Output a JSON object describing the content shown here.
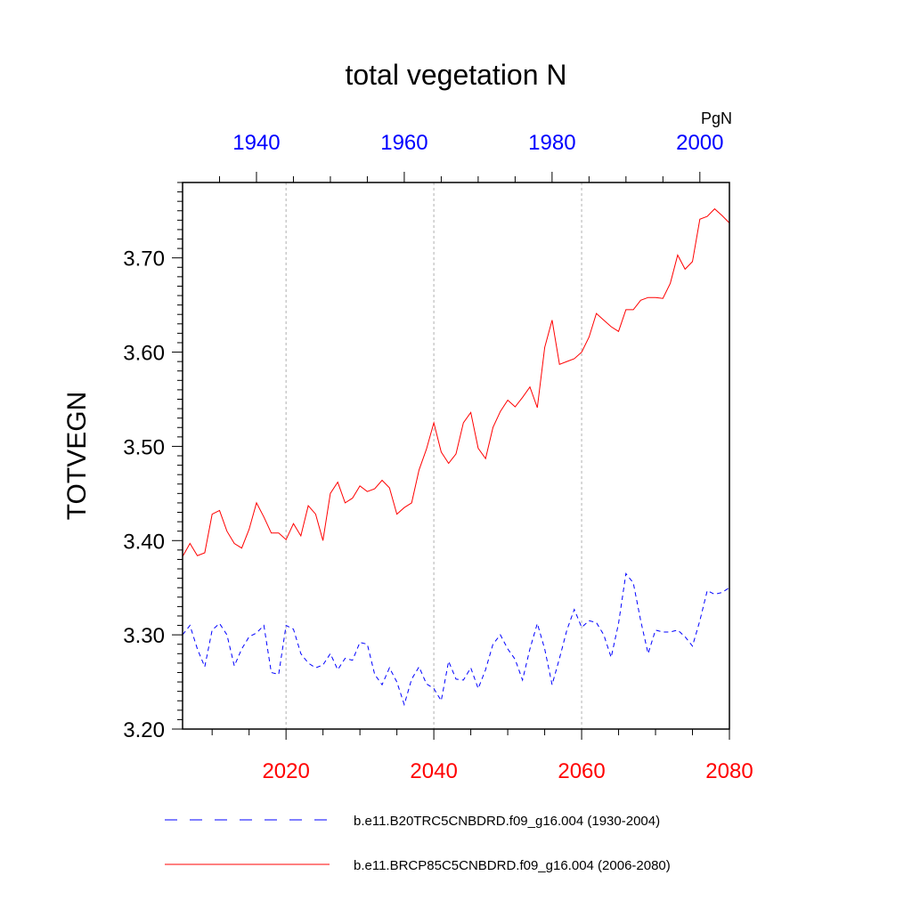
{
  "chart_data": {
    "type": "line",
    "title": "total vegetation N",
    "ylabel": "TOTVEGN",
    "units": "PgN",
    "ylim": [
      3.2,
      3.78
    ],
    "y_ticks": [
      "3.20",
      "3.30",
      "3.40",
      "3.50",
      "3.60",
      "3.70"
    ],
    "bottom_axis": {
      "xlim": [
        2006,
        2080
      ],
      "ticks": [
        "2020",
        "2040",
        "2060",
        "2080"
      ],
      "color": "#ff0000"
    },
    "top_axis": {
      "xlim": [
        1930,
        2004
      ],
      "ticks": [
        "1940",
        "1960",
        "1980",
        "2000"
      ],
      "color": "#0000ff"
    },
    "grid": "vertical dotted at bottom-axis major ticks",
    "legend_placement": "bottom",
    "series": [
      {
        "name": "b.e11.B20TRC5CNBDRD.f09_g16.004 (1930-2004)",
        "axis": "top",
        "color": "#0000ff",
        "dash": "dashed",
        "x": [
          1930,
          1931,
          1932,
          1933,
          1934,
          1935,
          1936,
          1937,
          1938,
          1939,
          1940,
          1941,
          1942,
          1943,
          1944,
          1945,
          1946,
          1947,
          1948,
          1949,
          1950,
          1951,
          1952,
          1953,
          1954,
          1955,
          1956,
          1957,
          1958,
          1959,
          1960,
          1961,
          1962,
          1963,
          1964,
          1965,
          1966,
          1967,
          1968,
          1969,
          1970,
          1971,
          1972,
          1973,
          1974,
          1975,
          1976,
          1977,
          1978,
          1979,
          1980,
          1981,
          1982,
          1983,
          1984,
          1985,
          1986,
          1987,
          1988,
          1989,
          1990,
          1991,
          1992,
          1993,
          1994,
          1995,
          1996,
          1997,
          1998,
          1999,
          2000,
          2001,
          2002,
          2003,
          2004
        ],
        "values": [
          3.3,
          3.31,
          3.285,
          3.266,
          3.305,
          3.312,
          3.3,
          3.267,
          3.285,
          3.298,
          3.302,
          3.31,
          3.26,
          3.258,
          3.31,
          3.306,
          3.28,
          3.27,
          3.265,
          3.268,
          3.28,
          3.263,
          3.275,
          3.273,
          3.292,
          3.29,
          3.258,
          3.247,
          3.265,
          3.25,
          3.226,
          3.253,
          3.266,
          3.248,
          3.243,
          3.23,
          3.272,
          3.253,
          3.252,
          3.265,
          3.243,
          3.263,
          3.29,
          3.3,
          3.285,
          3.274,
          3.252,
          3.285,
          3.312,
          3.285,
          3.247,
          3.275,
          3.305,
          3.327,
          3.308,
          3.315,
          3.313,
          3.3,
          3.276,
          3.312,
          3.365,
          3.355,
          3.315,
          3.28,
          3.305,
          3.303,
          3.303,
          3.305,
          3.298,
          3.288,
          3.315,
          3.347,
          3.343,
          3.345,
          3.35
        ]
      },
      {
        "name": "b.e11.BRCP85C5CNBDRD.f09_g16.004 (2006-2080)",
        "axis": "bottom",
        "color": "#ff0000",
        "dash": "solid",
        "x": [
          2006,
          2007,
          2008,
          2009,
          2010,
          2011,
          2012,
          2013,
          2014,
          2015,
          2016,
          2017,
          2018,
          2019,
          2020,
          2021,
          2022,
          2023,
          2024,
          2025,
          2026,
          2027,
          2028,
          2029,
          2030,
          2031,
          2032,
          2033,
          2034,
          2035,
          2036,
          2037,
          2038,
          2039,
          2040,
          2041,
          2042,
          2043,
          2044,
          2045,
          2046,
          2047,
          2048,
          2049,
          2050,
          2051,
          2052,
          2053,
          2054,
          2055,
          2056,
          2057,
          2058,
          2059,
          2060,
          2061,
          2062,
          2063,
          2064,
          2065,
          2066,
          2067,
          2068,
          2069,
          2070,
          2071,
          2072,
          2073,
          2074,
          2075,
          2076,
          2077,
          2078,
          2079,
          2080
        ],
        "values": [
          3.383,
          3.397,
          3.384,
          3.387,
          3.428,
          3.432,
          3.41,
          3.397,
          3.392,
          3.412,
          3.44,
          3.425,
          3.408,
          3.408,
          3.401,
          3.418,
          3.405,
          3.437,
          3.428,
          3.4,
          3.45,
          3.462,
          3.44,
          3.445,
          3.458,
          3.452,
          3.455,
          3.464,
          3.456,
          3.428,
          3.435,
          3.44,
          3.475,
          3.497,
          3.525,
          3.494,
          3.482,
          3.492,
          3.525,
          3.536,
          3.498,
          3.487,
          3.52,
          3.537,
          3.549,
          3.542,
          3.552,
          3.563,
          3.541,
          3.605,
          3.634,
          3.587,
          3.59,
          3.593,
          3.6,
          3.616,
          3.641,
          3.634,
          3.627,
          3.622,
          3.645,
          3.645,
          3.655,
          3.658,
          3.658,
          3.657,
          3.673,
          3.703,
          3.688,
          3.696,
          3.741,
          3.744,
          3.752,
          3.745,
          3.737
        ]
      }
    ]
  }
}
